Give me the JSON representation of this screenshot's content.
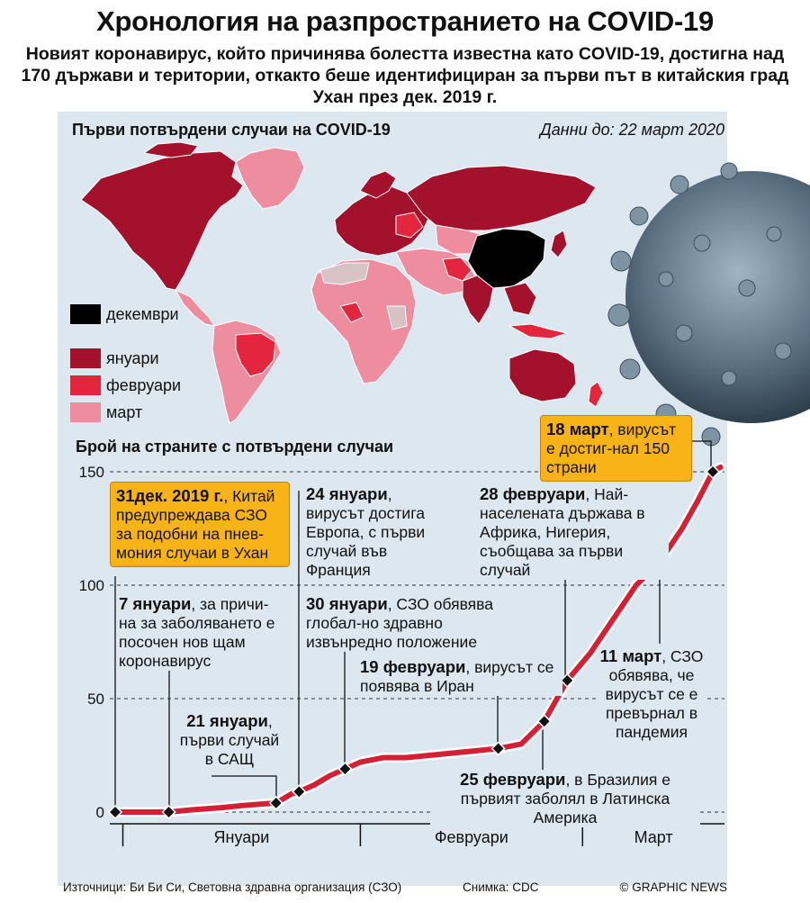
{
  "title": "Хронология на разпространието на COVID-19",
  "subtitle": "Новият коронавирус, който причинява болестта известна като COVID-19, достигна над 170 държави и територии, откакто беше идентифициран за първи път в китайския град Ухан през дек. 2019 г.",
  "map": {
    "heading": "Първи потвърдени случаи на COVID-19",
    "date_note": "Данни до: 22 март 2020",
    "legend": [
      {
        "label": "декември",
        "color": "#000000"
      },
      {
        "label": "януари",
        "color": "#a3112c"
      },
      {
        "label": "февруари",
        "color": "#e3253d"
      },
      {
        "label": "март",
        "color": "#ee8da0"
      }
    ]
  },
  "chart_heading": "Брой на страните с потвърдени случаи",
  "chart_data": {
    "type": "line",
    "title": "Брой на страните с потвърдени случаи",
    "xlabel": "",
    "ylabel": "",
    "ylim": [
      0,
      150
    ],
    "yticks": [
      0,
      50,
      100,
      150
    ],
    "months": [
      "Януари",
      "Февруари",
      "Март"
    ],
    "series": [
      {
        "x": [
          "2019-12-31",
          "2020-01-07",
          "2020-01-10",
          "2020-01-14",
          "2020-01-17",
          "2020-01-21",
          "2020-01-23",
          "2020-01-24",
          "2020-01-26",
          "2020-01-28",
          "2020-01-30",
          "2020-02-01",
          "2020-02-04",
          "2020-02-07",
          "2020-02-10",
          "2020-02-13",
          "2020-02-16",
          "2020-02-19",
          "2020-02-22",
          "2020-02-25",
          "2020-02-28",
          "2020-03-02",
          "2020-03-05",
          "2020-03-08",
          "2020-03-11",
          "2020-03-14",
          "2020-03-16",
          "2020-03-18",
          "2020-03-19"
        ],
        "values": [
          0,
          0,
          1,
          2,
          3,
          4,
          8,
          9,
          12,
          16,
          19,
          22,
          24,
          24,
          25,
          26,
          27,
          28,
          30,
          40,
          58,
          70,
          85,
          100,
          110,
          125,
          137,
          150,
          152
        ]
      }
    ],
    "markers": [
      {
        "date": "2019-12-31",
        "value": 0
      },
      {
        "date": "2020-01-07",
        "value": 0
      },
      {
        "date": "2020-01-21",
        "value": 4
      },
      {
        "date": "2020-01-24",
        "value": 9
      },
      {
        "date": "2020-01-30",
        "value": 19
      },
      {
        "date": "2020-02-19",
        "value": 28
      },
      {
        "date": "2020-02-25",
        "value": 40
      },
      {
        "date": "2020-02-28",
        "value": 58
      },
      {
        "date": "2020-03-11",
        "value": 110
      },
      {
        "date": "2020-03-18",
        "value": 150
      }
    ]
  },
  "annotations": [
    {
      "bold": "31дек. 2019 г.",
      "rest": ", Китай предупреждава СЗО за подобни на пнев-мония случаи в Ухан"
    },
    {
      "bold": "7 януари",
      "rest": ", за причи-на за заболяването е посочен нов щам коронавирус"
    },
    {
      "bold": "21 януари",
      "rest": ", първи случай в САЩ"
    },
    {
      "bold": "24 януари",
      "rest": ", вирусът достига Европа, с първи случай във Франция"
    },
    {
      "bold": "30 януари",
      "rest": ", СЗО обявява глобал-но здравно извънредно положение"
    },
    {
      "bold": "19 февруари",
      "rest": ", вирусът се появява в Иран"
    },
    {
      "bold": "25 февруари",
      "rest": ", в Бразилия е първият заболял в Латинска Америка"
    },
    {
      "bold": "28 февруари",
      "rest": ", Най-населената държава в Африка, Нигерия, съобщава за първи случай"
    },
    {
      "bold": "11 март",
      "rest": ", СЗО обявява, че вирусът се е превърнал в пандемия"
    },
    {
      "bold": "18 март",
      "rest": ", вирусът е достиг-нал 150 страни"
    }
  ],
  "footer": {
    "sources": "Източници: Би Би Си, Световна здравна организация (СЗО)",
    "photo": "Снимка: CDC",
    "credit": "© GRAPHIC NEWS"
  },
  "colors": {
    "line": "#d41f35",
    "panel": "#dde7f0",
    "highlight": "#f8b316"
  }
}
